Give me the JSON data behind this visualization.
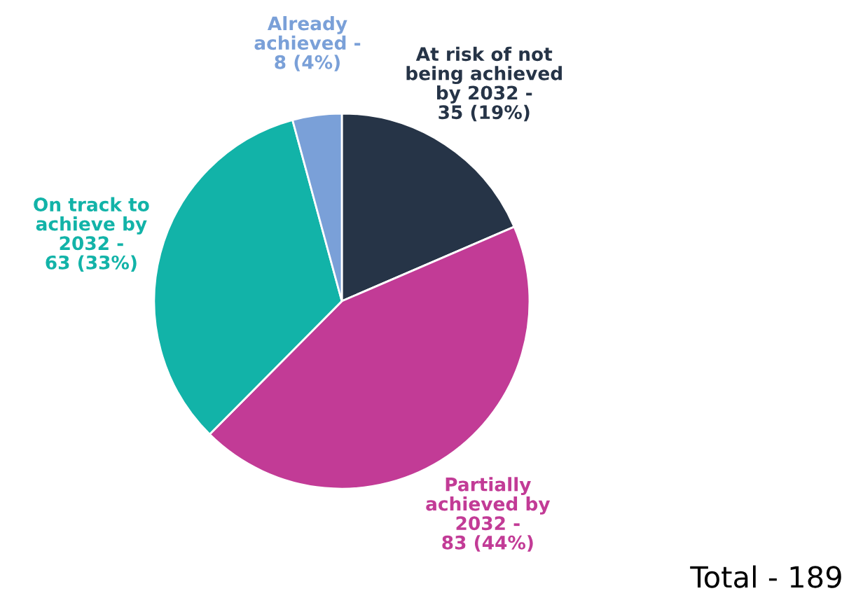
{
  "chart_data": {
    "type": "pie",
    "categories": [
      "At risk of not\nbeing achieved\nby 2032 -",
      "Partially\nachieved by\n2032 -",
      "On track to\nachieve by\n2032 -",
      "Already\nachieved -"
    ],
    "values": [
      35,
      83,
      63,
      8
    ],
    "value_labels": [
      "35 (19%)",
      "83 (44%)",
      "63 (33%)",
      "8 (4%)"
    ],
    "colors": [
      "#263447",
      "#c23b96",
      "#12b3a8",
      "#7aa0d8"
    ],
    "annotations": [
      "Total - 189"
    ],
    "legend": false
  }
}
